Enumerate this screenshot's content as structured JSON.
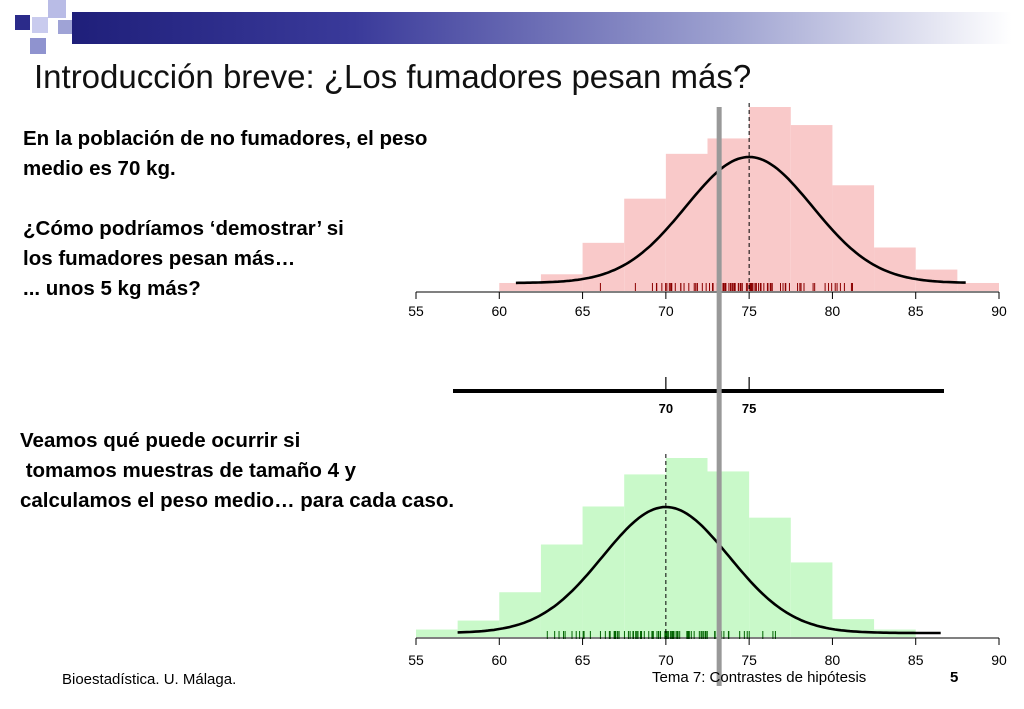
{
  "slide": {
    "title": "Introducción breve: ¿Los fumadores pesan más?",
    "text1": "En la población de no fumadores, el peso\nmedio es 70 kg.\n\n¿Cómo podríamos ‘demostrar’ si\nlos fumadores pesan más…\n... unos 5 kg más?",
    "text2": "Veamos qué puede ocurrir si\n tomamos muestras de tamaño 4 y\ncalculamos el peso medio… para cada caso.",
    "footer_left": "Bioestadística. U. Málaga.",
    "footer_right": "Tema 7: Contrastes de hipótesis",
    "page_number": "5"
  },
  "colors": {
    "title_bar": "#1f1f7a",
    "decor_square": "#2b2b8a",
    "decor_light": "#b9bce6",
    "top_fill": "#f9c9c9",
    "top_rug": "#8b0000",
    "bottom_fill": "#c9f9c9",
    "bottom_rug": "#006400",
    "threshold_line": "#999999"
  },
  "chart_data": [
    {
      "type": "bar",
      "bin_edges": [
        60,
        62.5,
        65,
        67.5,
        70,
        72.5,
        75,
        77.5,
        80,
        82.5,
        85,
        87.5,
        90
      ],
      "values": [
        1.2,
        2.5,
        7.2,
        13.8,
        20.5,
        22.8,
        27.5,
        24.8,
        15.8,
        6.5,
        3.2,
        1.2
      ],
      "curve": {
        "distribution": "normal",
        "mean": 75,
        "sd": 3.8,
        "x_range": [
          61,
          88
        ]
      },
      "mean_marker": 75,
      "xlim": [
        55,
        90
      ],
      "xticks": [
        "55",
        "60",
        "65",
        "70",
        "75",
        "80",
        "85",
        "90"
      ],
      "rug_range": [
        60,
        82
      ]
    },
    {
      "type": "bar",
      "bin_edges": [
        55,
        57.5,
        60,
        62.5,
        65,
        67.5,
        70,
        72.5,
        75,
        77.5,
        80,
        82.5,
        85
      ],
      "values": [
        1.0,
        2.2,
        6.0,
        12.4,
        17.5,
        21.8,
        24.0,
        22.2,
        16.0,
        10.0,
        2.4,
        1.0
      ],
      "curve": {
        "distribution": "normal",
        "mean": 70,
        "sd": 3.8,
        "x_range": [
          57.5,
          86.5
        ]
      },
      "mean_marker": 70,
      "xlim": [
        55,
        90
      ],
      "xticks": [
        "55",
        "60",
        "65",
        "70",
        "75",
        "80",
        "85",
        "90"
      ],
      "rug_range": [
        62.5,
        77
      ]
    }
  ],
  "number_line": {
    "ticks": [
      {
        "value": 70,
        "label": "70"
      },
      {
        "value": 75,
        "label": "75"
      }
    ]
  },
  "threshold_value": 73.2
}
